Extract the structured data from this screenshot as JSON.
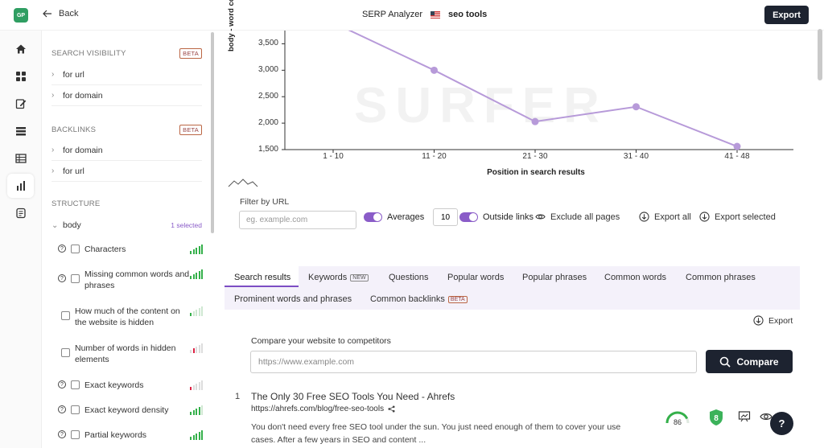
{
  "topbar": {
    "logo": "GP",
    "back_label": "Back",
    "title": "SERP Analyzer",
    "keyword": "seo tools",
    "export_label": "Export"
  },
  "rail": {
    "icons": [
      "home-icon",
      "grid-icon",
      "edit-note-icon",
      "layers-icon",
      "table-icon",
      "bar-chart-icon",
      "document-icon"
    ],
    "active_index": 5
  },
  "panel": {
    "search_visibility": {
      "title": "SEARCH VISIBILITY",
      "badge": "BETA",
      "items": [
        "for url",
        "for domain"
      ]
    },
    "backlinks": {
      "title": "BACKLINKS",
      "badge": "BETA",
      "items": [
        "for domain",
        "for url"
      ]
    },
    "structure": {
      "title": "STRUCTURE",
      "group": "body",
      "selected": "1 selected",
      "items": [
        {
          "label": "Characters",
          "help": true,
          "level": "green"
        },
        {
          "label": "Missing common words and phrases",
          "help": true,
          "level": "green"
        },
        {
          "label": "How much of the content on the website is hidden",
          "help": false,
          "level": "low-green"
        },
        {
          "label": "Number of words in hidden elements",
          "help": false,
          "level": "red"
        },
        {
          "label": "Exact keywords",
          "help": true,
          "level": "low-red"
        },
        {
          "label": "Exact keyword density",
          "help": true,
          "level": "green"
        },
        {
          "label": "Partial keywords",
          "help": true,
          "level": "green"
        }
      ]
    }
  },
  "chart_data": {
    "type": "line",
    "categories": [
      "1 - 10",
      "11 - 20",
      "21 - 30",
      "31 - 40",
      "41 - 48"
    ],
    "series": [
      {
        "values": [
          3900,
          3000,
          2030,
          2310,
          1560
        ]
      }
    ],
    "ylabel": "body - word count",
    "xlabel": "Position in search results",
    "yticks": [
      "1,500",
      "2,000",
      "2,500",
      "3,000",
      "3,500"
    ],
    "ylim": [
      1500,
      3750
    ],
    "color": "#b79ad9",
    "watermark": "SURFER"
  },
  "filter": {
    "label": "Filter by URL",
    "placeholder": "eg. example.com",
    "averages_label": "Averages",
    "averages_value": "10",
    "outside_links_label": "Outside links",
    "exclude_label": "Exclude all pages",
    "export_all_label": "Export all",
    "export_selected_label": "Export selected"
  },
  "tabs": [
    {
      "label": "Search results",
      "badge": ""
    },
    {
      "label": "Keywords",
      "badge": "NEW"
    },
    {
      "label": "Questions",
      "badge": ""
    },
    {
      "label": "Popular words",
      "badge": ""
    },
    {
      "label": "Popular phrases",
      "badge": ""
    },
    {
      "label": "Common words",
      "badge": ""
    },
    {
      "label": "Common phrases",
      "badge": ""
    },
    {
      "label": "Prominent words and phrases",
      "badge": ""
    },
    {
      "label": "Common backlinks",
      "badge": "BETA"
    }
  ],
  "results": {
    "export_label": "Export",
    "compare_label": "Compare your website to competitors",
    "compare_placeholder": "https://www.example.com",
    "compare_button": "Compare",
    "items": [
      {
        "rank": "1",
        "title": "The Only 30 Free SEO Tools You Need - Ahrefs",
        "url": "https://ahrefs.com/blog/free-seo-tools",
        "description": "You don't need every free SEO tool under the sun. You just need enough of them to cover your use cases. After a few years in SEO and content ...",
        "score": "86",
        "score_fraction": 0.86,
        "shield_value": "8"
      }
    ]
  },
  "help_label": "?"
}
